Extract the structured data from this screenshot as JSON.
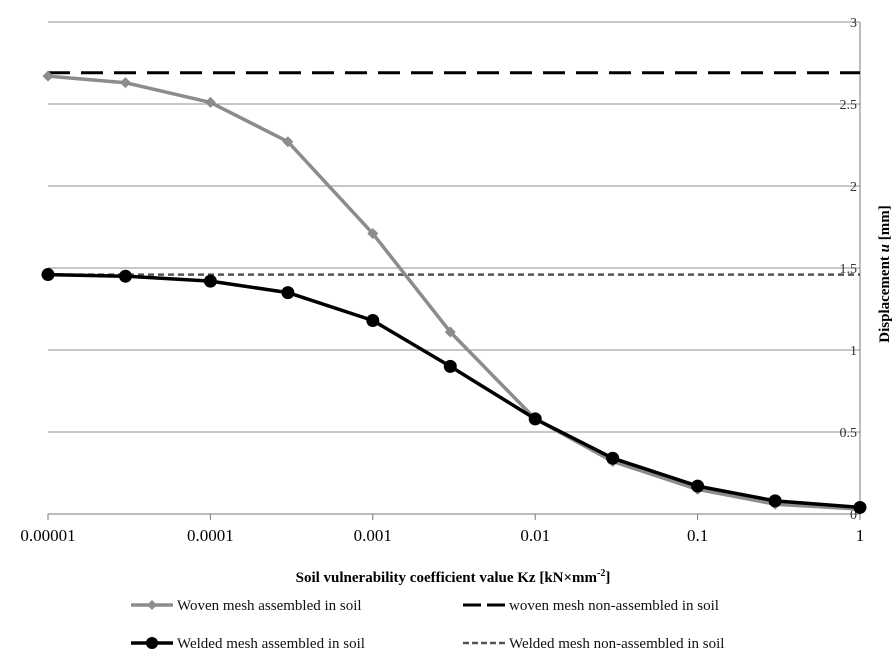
{
  "chart_data": {
    "type": "line",
    "xlabel": "Soil vulnerability coefficient value Kz [kN×mm",
    "xlabel_superscript": "-2",
    "xlabel_close": "]",
    "ylabel_prefix": "Displacement ",
    "ylabel_var": "u",
    "ylabel_suffix": " [mm]",
    "x_scale": "log",
    "xlim": [
      1e-05,
      1
    ],
    "ylim": [
      0,
      3
    ],
    "y_axis_side": "right",
    "x_ticks": [
      "0.00001",
      "0.0001",
      "0.001",
      "0.01",
      "0.1",
      "1"
    ],
    "y_ticks": [
      "0",
      "0.5",
      "1",
      "1.5",
      "2",
      "2.5",
      "3"
    ],
    "grid": "horizontal",
    "legend_position": "bottom",
    "series": [
      {
        "name": "Woven mesh assembled in soil",
        "style": "solid-diamond",
        "color": "#8c8c8c",
        "x": [
          1e-05,
          3e-05,
          0.0001,
          0.0003,
          0.001,
          0.003,
          0.01,
          0.03,
          0.1,
          0.3,
          1
        ],
        "y": [
          2.67,
          2.63,
          2.51,
          2.27,
          1.71,
          1.11,
          0.58,
          0.32,
          0.15,
          0.06,
          0.03
        ]
      },
      {
        "name": "woven mesh non-assembled in soil",
        "style": "long-dash",
        "color": "#000000",
        "x": [
          1e-05,
          1
        ],
        "y": [
          2.69,
          2.69
        ]
      },
      {
        "name": "Welded mesh assembled in soil",
        "style": "solid-circle",
        "color": "#000000",
        "x": [
          1e-05,
          3e-05,
          0.0001,
          0.0003,
          0.001,
          0.003,
          0.01,
          0.03,
          0.1,
          0.3,
          1
        ],
        "y": [
          1.46,
          1.45,
          1.42,
          1.35,
          1.18,
          0.9,
          0.58,
          0.34,
          0.17,
          0.08,
          0.04
        ]
      },
      {
        "name": "Welded mesh non-assembled in soil",
        "style": "short-dash",
        "color": "#555555",
        "x": [
          1e-05,
          1
        ],
        "y": [
          1.46,
          1.46
        ]
      }
    ]
  }
}
